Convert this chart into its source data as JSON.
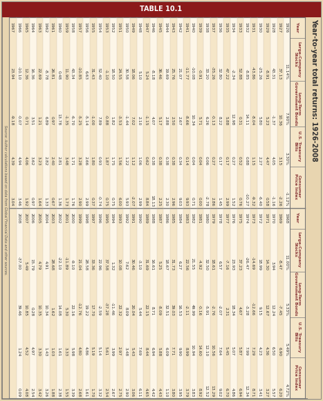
{
  "title": "Year-to-year total returns: 1926-2008",
  "table_label": "TABLE 10.1",
  "source": "Source: Author calculations based on data from Global Financial Data and other sources.",
  "col_headers": [
    "Year",
    "Large-Company\nStocks",
    "Long-Term\nGovernment Bonds",
    "U.S. Treasury\nBills",
    "Consumer\nPrice Index"
  ],
  "data_left": [
    [
      1926,
      "11.14%",
      "7.90%",
      "3.30%",
      "-1.12%"
    ],
    [
      1927,
      "37.13",
      "10.36",
      "3.15",
      "-2.26"
    ],
    [
      1928,
      "43.31",
      "-1.37",
      "4.05",
      "-1.16"
    ],
    [
      1929,
      "-8.91",
      "5.23",
      "4.47",
      "0.58"
    ],
    [
      1930,
      "-25.26",
      "5.80",
      "2.27",
      "-6.40"
    ],
    [
      1931,
      "-43.86",
      "-8.04",
      "1.15",
      "-9.32"
    ],
    [
      1932,
      "-8.85",
      "14.11",
      "0.88",
      "-10.27"
    ],
    [
      1933,
      "52.88",
      "0.31",
      "0.52",
      "0.76"
    ],
    [
      1934,
      "-2.34",
      "12.98",
      "0.27",
      "1.52"
    ],
    [
      1935,
      "47.22",
      "5.88",
      "0.17",
      "2.99"
    ],
    [
      1936,
      "32.80",
      "8.22",
      "0.17",
      "1.45"
    ],
    [
      1937,
      "-35.26",
      "-0.13",
      "0.27",
      "2.86"
    ],
    [
      1938,
      "33.20",
      "6.26",
      "0.06",
      "-2.78"
    ],
    [
      1939,
      "-0.91",
      "5.71",
      "0.04",
      "0.00"
    ],
    [
      1940,
      "-10.08",
      "10.34",
      "0.04",
      "0.71"
    ],
    [
      1941,
      "-11.77",
      "-8.66",
      "0.14",
      "9.93"
    ],
    [
      1942,
      "21.07",
      "2.67",
      "0.34",
      "9.03"
    ],
    [
      1943,
      "25.76",
      "2.50",
      "0.38",
      "2.96"
    ],
    [
      1944,
      "19.69",
      "2.88",
      "0.38",
      "2.30"
    ],
    [
      1945,
      "36.46",
      "5.17",
      "0.38",
      "2.25"
    ],
    [
      1946,
      "-8.18",
      "4.07",
      "0.38",
      "18.13"
    ],
    [
      1947,
      "5.24",
      "-1.15",
      "0.62",
      "8.84"
    ],
    [
      1948,
      "5.10",
      "2.10",
      "1.06",
      "2.99"
    ],
    [
      1949,
      "18.06",
      "7.02",
      "1.12",
      "-2.07"
    ],
    [
      1950,
      "30.58",
      "-1.44",
      "1.22",
      "5.93"
    ],
    [
      1951,
      "24.55",
      "-3.53",
      "1.56",
      "6.00"
    ],
    [
      1952,
      "18.50",
      "1.82",
      "1.75",
      "0.75"
    ],
    [
      1953,
      "-1.10",
      "-0.88",
      "1.87",
      "0.75"
    ],
    [
      1954,
      "52.40",
      "7.89",
      "0.93",
      "-0.74"
    ],
    [
      1955,
      "31.43",
      "-1.00",
      "1.80",
      "0.37"
    ],
    [
      1956,
      "6.63",
      "-5.14",
      "2.66",
      "2.99"
    ],
    [
      1957,
      "-10.85",
      "-5.25",
      "3.28",
      "2.90"
    ],
    [
      1958,
      "43.34",
      "-6.70",
      "1.71",
      "1.76"
    ],
    [
      1959,
      "11.90",
      "-1.35",
      "3.48",
      "1.73"
    ],
    [
      1960,
      "0.48",
      "13.78",
      "2.81",
      "1.36"
    ],
    [
      1961,
      "26.81",
      "0.97",
      "2.40",
      "0.67"
    ],
    [
      1962,
      "-8.78",
      "6.89",
      "2.82",
      "1.33"
    ],
    [
      1963,
      "22.69",
      "1.21",
      "3.23",
      "1.64"
    ],
    [
      1964,
      "16.36",
      "3.51",
      "3.62",
      "0.97"
    ],
    [
      1965,
      "12.36",
      "0.71",
      "4.06",
      "1.92"
    ],
    [
      1966,
      "-10.10",
      "-0.07",
      "4.94",
      "3.46"
    ],
    [
      1967,
      "23.94",
      "-9.18",
      "4.39",
      "3.04"
    ]
  ],
  "data_right": [
    [
      1968,
      "11.00%",
      "5.33%",
      "5.49%",
      "4.72%"
    ],
    [
      1969,
      "-8.47",
      "-7.45",
      "6.90",
      "6.20"
    ],
    [
      1970,
      "3.94",
      "12.24",
      "6.50",
      "5.57"
    ],
    [
      1971,
      "14.30",
      "12.67",
      "4.36",
      "3.27"
    ],
    [
      1972,
      "18.99",
      "9.15",
      "4.23",
      "3.41"
    ],
    [
      1973,
      "-14.69",
      "-12.66",
      "7.29",
      "8.71"
    ],
    [
      1974,
      "-26.47",
      "-3.28",
      "7.99",
      "12.34"
    ],
    [
      1975,
      "37.23",
      "4.67",
      "5.87",
      "6.94"
    ],
    [
      1976,
      "23.93",
      "18.34",
      "5.07",
      "4.86"
    ],
    [
      1977,
      "-7.16",
      "2.31",
      "5.45",
      "6.70"
    ],
    [
      1978,
      "6.57",
      "-2.07",
      "7.64",
      "9.02"
    ],
    [
      1979,
      "18.61",
      "-2.76",
      "10.56",
      "13.29"
    ],
    [
      1980,
      "32.50",
      "-5.91",
      "12.10",
      "12.52"
    ],
    [
      1981,
      "-4.92",
      "-0.16",
      "14.60",
      "8.92"
    ],
    [
      1982,
      "21.55",
      "49.99",
      "10.94",
      "3.83"
    ],
    [
      1983,
      "22.56",
      "-2.11",
      "8.99",
      "3.79"
    ],
    [
      1984,
      "6.27",
      "16.53",
      "9.90",
      "3.95"
    ],
    [
      1985,
      "31.73",
      "39.03",
      "7.71",
      "3.80"
    ],
    [
      1986,
      "18.67",
      "32.51",
      "6.09",
      "1.10"
    ],
    [
      1987,
      "5.25",
      "-8.09",
      "5.88",
      "4.43"
    ],
    [
      1988,
      "16.61",
      "8.71",
      "6.94",
      "4.42"
    ],
    [
      1989,
      "31.69",
      "22.15",
      "8.44",
      "4.65"
    ],
    [
      1990,
      "-3.10",
      "5.44",
      "7.69",
      "6.11"
    ],
    [
      1991,
      "30.46",
      "20.04",
      "5.43",
      "3.06"
    ],
    [
      1992,
      "7.62",
      "8.09",
      "3.48",
      "2.90"
    ],
    [
      1993,
      "10.08",
      "22.32",
      "2.97",
      "2.75"
    ],
    [
      1994,
      "1.32",
      "-11.46",
      "3.99",
      "2.67"
    ],
    [
      1995,
      "37.58",
      "-37.28",
      "5.61",
      "2.54"
    ],
    [
      1996,
      "22.96",
      "-2.59",
      "5.14",
      "3.32"
    ],
    [
      1997,
      "33.36",
      "17.70",
      "5.19",
      "1.70"
    ],
    [
      1998,
      "28.58",
      "19.22",
      "4.86",
      "1.61"
    ],
    [
      1999,
      "21.04",
      "-12.76",
      "4.80",
      "2.68"
    ],
    [
      2000,
      "-9.10",
      "22.16",
      "5.98",
      "3.39"
    ],
    [
      2001,
      "-11.89",
      "5.30",
      "3.33",
      "1.55"
    ],
    [
      2002,
      "-22.10",
      "14.08",
      "1.61",
      "2.38"
    ],
    [
      2003,
      "28.68",
      "1.62",
      "1.03",
      "1.88"
    ],
    [
      2004,
      "4.91",
      "10.34",
      "1.43",
      "3.26"
    ],
    [
      2005,
      "4.79",
      "10.35",
      "3.30",
      "3.42"
    ],
    [
      2006,
      "15.79",
      "0.28",
      "4.97",
      "2.54"
    ],
    [
      2007,
      "5.49",
      "10.85",
      "4.52",
      "4.08"
    ],
    [
      2008,
      "-37.00",
      "39.46",
      "1.24",
      "0.09"
    ]
  ],
  "header_bg": "#f5e6c8",
  "header_text_color": "#8B3A3A",
  "cell_bg": "#fdf6e8",
  "cell_bg_alt": "#f5e6c8",
  "title_bg": "#8B1A1A",
  "title_text_color": "#ffffff",
  "outer_bg": "#e8d5b0",
  "border_color": "#777777",
  "text_color": "#333333",
  "source_color": "#555555"
}
